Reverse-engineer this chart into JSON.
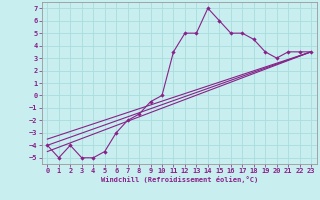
{
  "xlabel": "Windchill (Refroidissement éolien,°C)",
  "bg_color": "#c8eef0",
  "grid_color": "#aadddd",
  "line_color": "#882288",
  "xlim": [
    -0.5,
    23.5
  ],
  "ylim": [
    -5.5,
    7.5
  ],
  "xticks": [
    0,
    1,
    2,
    3,
    4,
    5,
    6,
    7,
    8,
    9,
    10,
    11,
    12,
    13,
    14,
    15,
    16,
    17,
    18,
    19,
    20,
    21,
    22,
    23
  ],
  "yticks": [
    -5,
    -4,
    -3,
    -2,
    -1,
    0,
    1,
    2,
    3,
    4,
    5,
    6,
    7
  ],
  "line1_x": [
    0,
    1,
    2,
    3,
    4,
    5,
    6,
    7,
    8,
    9,
    10,
    11,
    12,
    13,
    14,
    15,
    16,
    17,
    18,
    19,
    20,
    21,
    22,
    23
  ],
  "line1_y": [
    -4,
    -5,
    -4,
    -5,
    -5,
    -4.5,
    -3,
    -2,
    -1.5,
    -0.5,
    0,
    3.5,
    5,
    5,
    7,
    6,
    5,
    5,
    4.5,
    3.5,
    3,
    3.5,
    3.5,
    3.5
  ],
  "line3_x": [
    0,
    23
  ],
  "line3_y": [
    -4.5,
    3.5
  ],
  "line4_x": [
    0,
    23
  ],
  "line4_y": [
    -4.0,
    3.5
  ],
  "line5_x": [
    0,
    23
  ],
  "line5_y": [
    -3.5,
    3.5
  ],
  "xlabel_fontsize": 5.0,
  "tick_fontsize": 5.0
}
